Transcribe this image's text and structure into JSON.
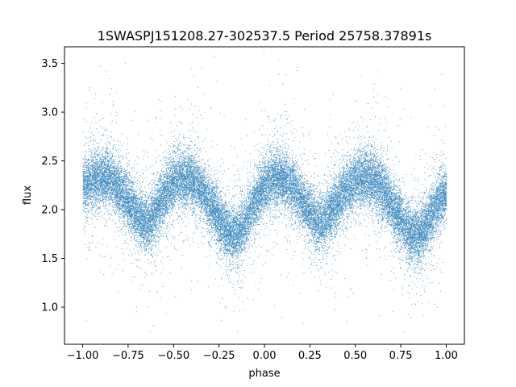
{
  "chart_data": {
    "type": "scatter",
    "title": "1SWASPJ151208.27-302537.5 Period 25758.37891s",
    "xlabel": "phase",
    "ylabel": "flux",
    "xlim": [
      -1.1,
      1.1
    ],
    "ylim": [
      0.62,
      3.67
    ],
    "x_ticks": [
      -1.0,
      -0.75,
      -0.5,
      -0.25,
      0.0,
      0.25,
      0.5,
      0.75,
      1.0
    ],
    "x_tick_labels": [
      "−1.00",
      "−0.75",
      "−0.50",
      "−0.25",
      "0.00",
      "0.25",
      "0.50",
      "0.75",
      "1.00"
    ],
    "y_ticks": [
      1.0,
      1.5,
      2.0,
      2.5,
      3.0,
      3.5
    ],
    "y_tick_labels": [
      "1.0",
      "1.5",
      "2.0",
      "2.5",
      "3.0",
      "3.5"
    ],
    "grid": false,
    "marker_color": "#1f77b4",
    "series": [
      {
        "x_range": [
          -1.0,
          1.0
        ],
        "mean_curve": {
          "x": [
            -1.0,
            -0.95,
            -0.9,
            -0.85,
            -0.8,
            -0.75,
            -0.7,
            -0.65,
            -0.6,
            -0.55,
            -0.5,
            -0.45,
            -0.4,
            -0.35,
            -0.3,
            -0.25,
            -0.2,
            -0.15,
            -0.1,
            -0.05,
            0.0,
            0.05,
            0.1,
            0.15,
            0.2,
            0.25,
            0.3,
            0.35,
            0.4,
            0.45,
            0.5,
            0.55,
            0.6,
            0.65,
            0.7,
            0.75,
            0.8,
            0.85,
            0.9,
            0.95,
            1.0
          ],
          "y": [
            2.22,
            2.3,
            2.33,
            2.31,
            2.22,
            2.08,
            1.94,
            1.86,
            1.98,
            2.15,
            2.27,
            2.33,
            2.31,
            2.22,
            2.06,
            1.9,
            1.76,
            1.73,
            1.9,
            2.11,
            2.25,
            2.33,
            2.32,
            2.24,
            2.1,
            1.96,
            1.88,
            1.93,
            2.08,
            2.22,
            2.3,
            2.33,
            2.3,
            2.2,
            2.04,
            1.88,
            1.75,
            1.73,
            1.88,
            2.06,
            2.2
          ]
        },
        "scatter_std": 0.14,
        "approx_points": 30000
      }
    ]
  }
}
